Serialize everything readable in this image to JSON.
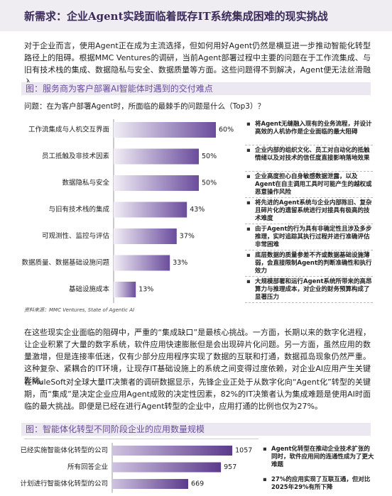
{
  "header": {
    "title": "新需求：企业Agent实践面临着既存IT系统集成困难的现实挑战"
  },
  "paragraphs": [
    "对于企业而言，使用Agent正在成为主流选择，但如何用好Agent仍然是横亘进一步推动智能化转型路径上的阻碍。根据MMC Ventures的调研，当前Agent部署过程中主要的问题在于工作流集成、与旧有技术栈的集成、数据隐私与安全、数据质量等方面。这些问题得不到解决，Agent便无法丝滑融入。",
    "在这些现实企业面临的阻碍中，严重的“集成缺口”是最核心挑战。一方面，长期以来的数字化进程，让企业积累了大量的数字系统，软件应用快速膨胀但是会出现碎片化问题。另一方面，虽然应用的数量激增，但是连接率低迷，仅有少部分应用程序实现了数据的互联和打通，数据孤岛现象仍然严重。这种复杂、紧耦合的IT环境，让现存IT基础设施上的系统之间变得过度依赖，对企业AI应用产生关键影响。",
    "在MuleSoft对全球大量IT决策者的调研数据显示，先锋企业正处于从数字化向“Agent化”转型的关键期，而“集成”是决定企业应用Agent成败的决定性因素，82%的IT决策者认为集成难题是使用AI时面临的最大挑战。即便是已经在进行Agent转型的企业中，应用打通的比例也仅为27%。"
  ],
  "figures": [
    {
      "title": "图：服务商为客户部署AI智能体时遇到的交付难点",
      "question": "问题：在为客户部署Agent时，所面临的最棘手的问题是什么（Top3）？",
      "chart_data": {
        "type": "bar",
        "categories": [
          "工作流集成与人机交互界面",
          "员工抵触及非技术因素",
          "数据隐私与安全",
          "与旧有技术栈的集成",
          "可观测性、监控与评估",
          "数据质量、数据基础设施问题",
          "基础设施成本"
        ],
        "values": [
          60,
          50,
          50,
          43,
          37,
          33,
          13
        ],
        "value_labels": [
          "60%",
          "50%",
          "50%",
          "43%",
          "37%",
          "33%",
          "13%"
        ],
        "color": "#6a4c9c"
      },
      "notes": [
        "将Agent无缝融入现有的业务流程，并设计高效的人机协作是企业面临的最大阻碍",
        "企业内部的组织文化、员工对自动化的抵触情绪以及对技术的信任度直接影响落地效果",
        "企业高度担心自身敏感数据泄露，以及Agent在自主调用工具时可能产生的越权或恶意操作风险",
        "将先进的Agent系统与企业内部陈旧、复杂且碎片化的遗留系统进行对接具有极高的技术难度",
        "由于Agent的行为具有非确定性且涉及多步推理，实时追踪其执行过程并进行准确评估非常困难",
        "底层数据的质量参差不齐或数据基础设施薄弱，会直接限制Agent的判断准确性和执行效力",
        "大规模部署和运行Agent系统所带来的高昂算力与推理成本，对企业的财务预算构成了显著压力"
      ],
      "source": "资料来源：MMC Ventures, State of Agentic AI"
    },
    {
      "title": "图：智能体化转型不同阶段企业的应用数量规模",
      "chart_data": {
        "type": "bar",
        "categories": [
          "已经实施智能体化转型的公司",
          "所有回答企业",
          "计划进行智能体化转型的公司"
        ],
        "values": [
          1057,
          957,
          669
        ],
        "color": "#5b3a8c"
      },
      "notes": [
        "Agent化转型在推动企业技术扩张的同时，软件应用间的连通性成为了更大难题",
        "27%的应用实现了互联互通，但对比2025年29%有所下降"
      ]
    }
  ]
}
